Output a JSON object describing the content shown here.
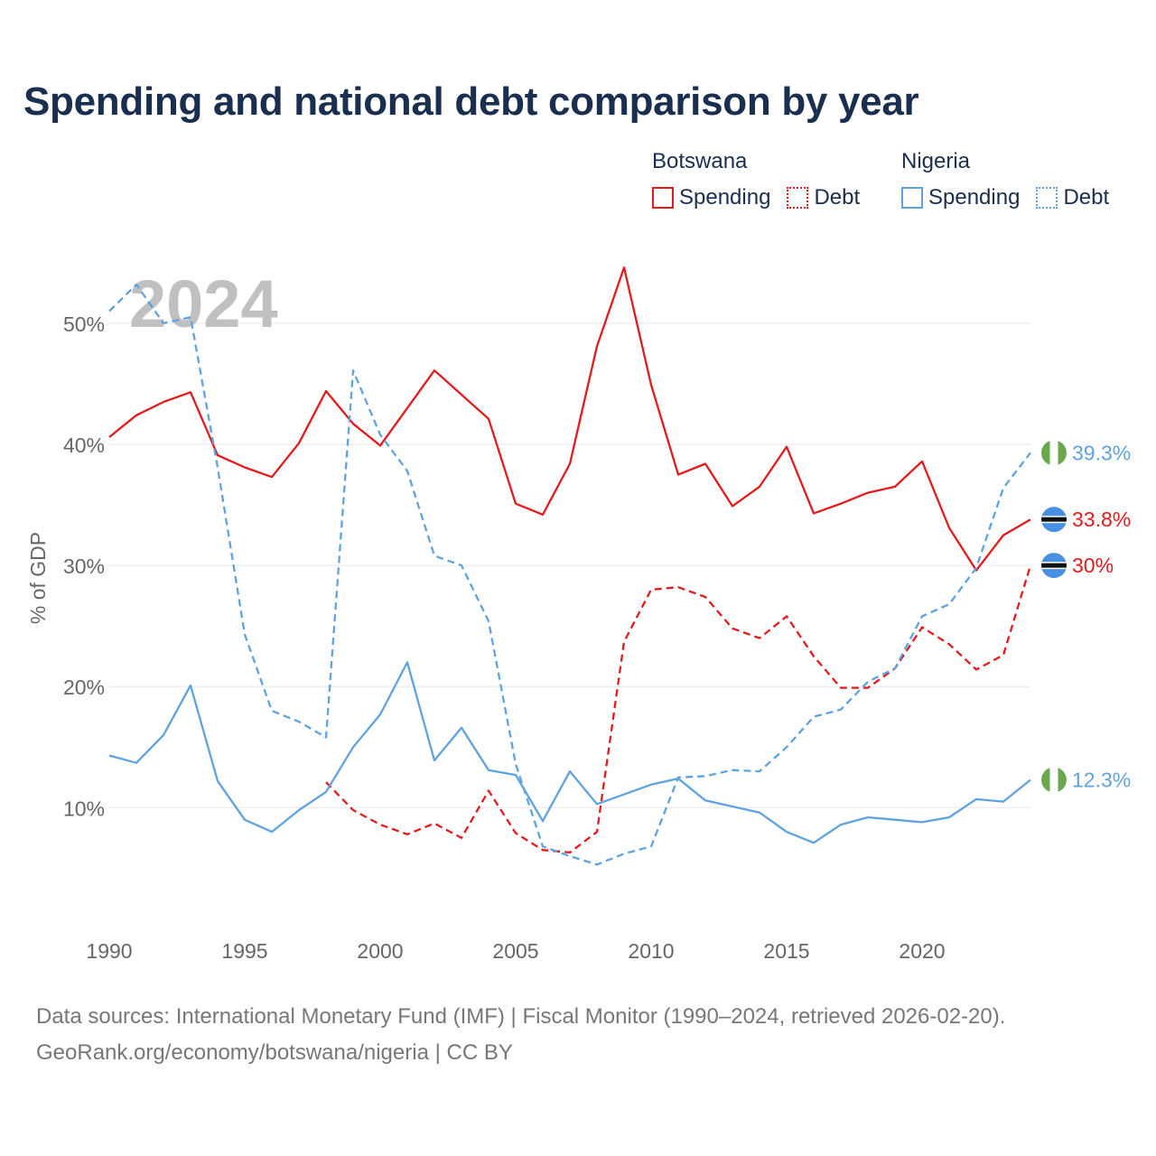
{
  "title": "Spending and national debt comparison by year",
  "legend": {
    "groups": [
      {
        "country": "Botswana",
        "items": [
          {
            "label": "Spending",
            "style": "solid",
            "color": "#e41a1c"
          },
          {
            "label": "Debt",
            "style": "dotted",
            "color": "#e41a1c"
          }
        ]
      },
      {
        "country": "Nigeria",
        "items": [
          {
            "label": "Spending",
            "style": "solid",
            "color": "#5fa2e0"
          },
          {
            "label": "Debt",
            "style": "dotted",
            "color": "#5fa2e0"
          }
        ]
      }
    ]
  },
  "year_label": "2024",
  "colors": {
    "botswana": "#e41a1c",
    "nigeria": "#5fa2e0",
    "grid": "#e6e6e6",
    "axis_text": "#666666",
    "year_label": "#c0c0c0"
  },
  "chart_data": {
    "type": "line",
    "x": [
      1990,
      1991,
      1992,
      1993,
      1994,
      1995,
      1996,
      1997,
      1998,
      1999,
      2000,
      2001,
      2002,
      2003,
      2004,
      2005,
      2006,
      2007,
      2008,
      2009,
      2010,
      2011,
      2012,
      2013,
      2014,
      2015,
      2016,
      2017,
      2018,
      2019,
      2020,
      2021,
      2022,
      2023,
      2024
    ],
    "xticks": [
      1990,
      1995,
      2000,
      2005,
      2010,
      2015,
      2020
    ],
    "yticks": [
      10,
      20,
      30,
      40,
      50
    ],
    "ytick_labels": [
      "10%",
      "20%",
      "30%",
      "40%",
      "50%"
    ],
    "ylim": [
      1,
      57
    ],
    "xlim": [
      1990,
      2024
    ],
    "ylabel": "% of GDP",
    "xlabel": "",
    "series": [
      {
        "name": "Botswana Spending",
        "country": "botswana",
        "dash": "solid",
        "values": [
          40.6,
          42.4,
          43.5,
          44.3,
          39.1,
          38.1,
          37.3,
          40.1,
          44.4,
          41.7,
          39.9,
          43.0,
          46.1,
          44.1,
          42.1,
          35.1,
          34.2,
          38.4,
          48.1,
          54.6,
          44.9,
          37.5,
          38.4,
          34.9,
          36.5,
          39.8,
          34.3,
          35.1,
          36.0,
          36.5,
          38.6,
          33.1,
          29.6,
          32.5,
          33.8
        ],
        "end_label": "33.8%"
      },
      {
        "name": "Botswana Debt",
        "country": "botswana",
        "dash": "dashed",
        "values": [
          null,
          null,
          null,
          null,
          null,
          null,
          null,
          null,
          12.1,
          9.8,
          8.6,
          7.8,
          8.7,
          7.5,
          11.4,
          7.9,
          6.5,
          6.3,
          8.0,
          23.7,
          28.0,
          28.2,
          27.4,
          24.8,
          24.0,
          25.8,
          22.5,
          19.9,
          19.9,
          21.5,
          24.9,
          23.5,
          21.4,
          22.6,
          30.0
        ],
        "end_label": "30%"
      },
      {
        "name": "Nigeria Spending",
        "country": "nigeria",
        "dash": "solid",
        "values": [
          14.3,
          13.7,
          16.0,
          20.1,
          12.2,
          9.0,
          8.0,
          9.8,
          11.3,
          15.0,
          17.7,
          22.0,
          13.9,
          16.6,
          13.1,
          12.7,
          8.9,
          13.0,
          10.3,
          11.1,
          11.9,
          12.4,
          10.6,
          10.1,
          9.6,
          8.0,
          7.1,
          8.6,
          9.2,
          9.0,
          8.8,
          9.2,
          10.7,
          10.5,
          12.3
        ],
        "end_label": "12.3%"
      },
      {
        "name": "Nigeria Debt",
        "country": "nigeria",
        "dash": "dashed",
        "values": [
          51.0,
          53.2,
          50.0,
          50.5,
          38.1,
          24.3,
          18.0,
          17.1,
          15.8,
          46.1,
          40.8,
          37.8,
          30.8,
          30.0,
          25.4,
          13.6,
          6.8,
          6.0,
          5.3,
          6.2,
          6.8,
          12.5,
          12.6,
          13.1,
          13.0,
          15.0,
          17.5,
          18.1,
          20.4,
          21.5,
          25.8,
          26.8,
          29.8,
          36.4,
          39.3
        ],
        "end_label": "39.3%"
      }
    ]
  },
  "source": {
    "line1": "Data sources: International Monetary Fund (IMF) | Fiscal Monitor (1990–2024, retrieved 2026-02-20).",
    "line2": "GeoRank.org/economy/botswana/nigeria | CC BY"
  }
}
